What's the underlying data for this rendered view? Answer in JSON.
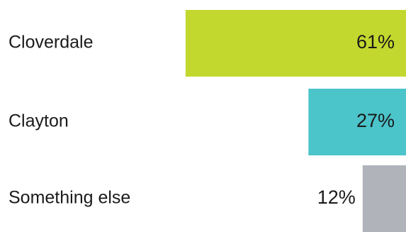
{
  "chart_data": {
    "type": "bar",
    "orientation": "horizontal",
    "categories": [
      "Cloverdale",
      "Clayton",
      "Something else"
    ],
    "values": [
      61,
      27,
      12
    ],
    "value_labels": [
      "61%",
      "27%",
      "12%"
    ],
    "colors": [
      "#c3d82e",
      "#4bc4ca",
      "#b0b3ba"
    ],
    "xlim": [
      0,
      100
    ],
    "grid": false,
    "legend": "none"
  }
}
